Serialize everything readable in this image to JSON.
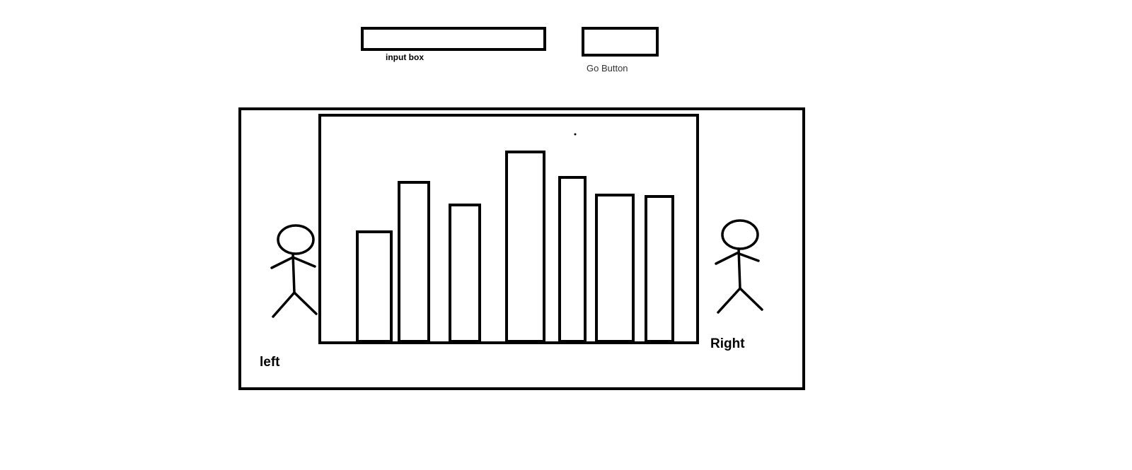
{
  "controls": {
    "input_caption": "input box",
    "input_value": "",
    "go_caption": "Go Button",
    "go_label": ""
  },
  "stage": {
    "left_label": "left",
    "right_label": "Right"
  },
  "colors": {
    "stroke": "#000000",
    "background": "#ffffff"
  },
  "icons": {
    "left_figure": "stick-figure-icon",
    "right_figure": "stick-figure-icon"
  },
  "chart_data": {
    "type": "bar",
    "title": "",
    "xlabel": "",
    "ylabel": "",
    "categories": [
      "",
      "",
      "",
      "",
      "",
      "",
      ""
    ],
    "values": [
      155,
      225,
      193,
      268,
      232,
      207,
      205
    ],
    "ylim": [
      0,
      310
    ],
    "grid": false,
    "legend": "none"
  }
}
